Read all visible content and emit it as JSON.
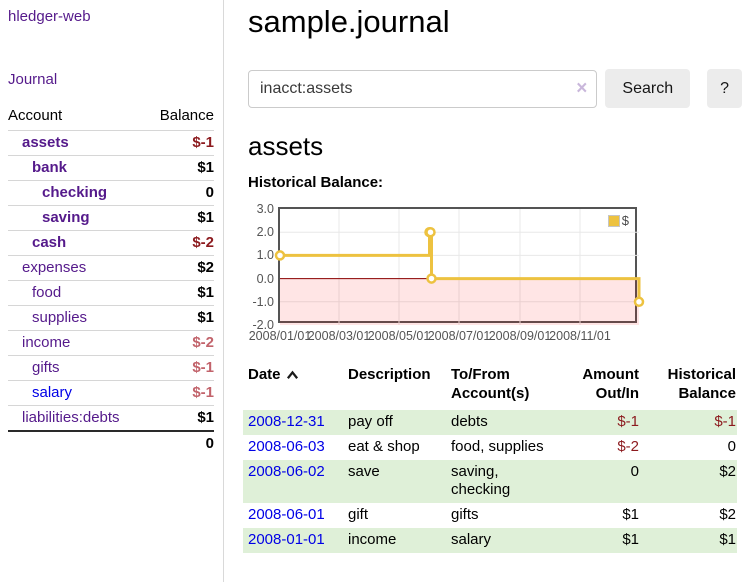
{
  "sidebar": {
    "app_title": "hledger-web",
    "journal_label": "Journal",
    "accounts_table": {
      "headers": {
        "account": "Account",
        "balance": "Balance"
      },
      "rows": [
        {
          "name": "assets",
          "balance": "$-1",
          "depth": 1,
          "bold": true,
          "balance_style": "negative"
        },
        {
          "name": "bank",
          "balance": "$1",
          "depth": 2,
          "bold": true
        },
        {
          "name": "checking",
          "balance": "0",
          "depth": 3,
          "bold": true
        },
        {
          "name": "saving",
          "balance": "$1",
          "depth": 3,
          "bold": true
        },
        {
          "name": "cash",
          "balance": "$-2",
          "depth": 2,
          "bold": true,
          "balance_style": "negative"
        },
        {
          "name": "expenses",
          "balance": "$2",
          "depth": 1
        },
        {
          "name": "food",
          "balance": "$1",
          "depth": 2
        },
        {
          "name": "supplies",
          "balance": "$1",
          "depth": 2
        },
        {
          "name": "income",
          "balance": "$-2",
          "depth": 1,
          "balance_style": "negative-muted"
        },
        {
          "name": "gifts",
          "balance": "$-1",
          "depth": 2,
          "balance_style": "negative-muted"
        },
        {
          "name": "salary",
          "balance": "$-1",
          "depth": 2,
          "balance_style": "negative-muted",
          "link_style": "blue"
        },
        {
          "name": "liabilities:debts",
          "balance": "$1",
          "depth": 1
        }
      ],
      "total": "0"
    }
  },
  "main": {
    "title": "sample.journal",
    "search": {
      "value": "inacct:assets",
      "clear_icon": "×",
      "button_label": "Search",
      "help_label": "?"
    },
    "account_heading": "assets",
    "chart_heading": "Historical Balance:"
  },
  "chart_data": {
    "type": "line",
    "subtype": "step",
    "title": "Historical Balance",
    "series": [
      {
        "name": "$",
        "color": "#edc240",
        "points": [
          [
            "2008-01-01",
            1
          ],
          [
            "2008-06-01",
            2
          ],
          [
            "2008-06-02",
            2
          ],
          [
            "2008-06-03",
            0
          ],
          [
            "2008-12-31",
            -1
          ]
        ]
      }
    ],
    "x_range": [
      "2008-01-01",
      "2008-12-31"
    ],
    "x_ticks": [
      "2008/01/01",
      "2008/03/01",
      "2008/05/01",
      "2008/07/01",
      "2008/09/01",
      "2008/11/01"
    ],
    "y_ticks": [
      3.0,
      2.0,
      1.0,
      0.0,
      -1.0,
      -2.0
    ],
    "ylim": [
      -2,
      3
    ],
    "grid": true,
    "legend": {
      "label": "$",
      "position": "top-right"
    },
    "negative_region_color": "rgba(255,0,0,0.10)",
    "zero_line_color": "#8b0000",
    "border_color": "#545454",
    "gridline_color": "#e8e8e8"
  },
  "register": {
    "headers": [
      {
        "label": "Date",
        "sorted": "asc"
      },
      {
        "label": "Description"
      },
      {
        "label": "To/From Account(s)"
      },
      {
        "label": "Amount Out/In"
      },
      {
        "label": "Historical Balance"
      }
    ],
    "rows": [
      {
        "date": "2008-12-31",
        "description": "pay off",
        "accounts": "debts",
        "amount": "$-1",
        "amount_negative": true,
        "balance": "$-1",
        "balance_negative": true
      },
      {
        "date": "2008-06-03",
        "description": "eat & shop",
        "accounts": "food, supplies",
        "amount": "$-2",
        "amount_negative": true,
        "balance": "0"
      },
      {
        "date": "2008-06-02",
        "description": "save",
        "accounts": "saving, checking",
        "amount": "0",
        "balance": "$2"
      },
      {
        "date": "2008-06-01",
        "description": "gift",
        "accounts": "gifts",
        "amount": "$1",
        "balance": "$2"
      },
      {
        "date": "2008-01-01",
        "description": "income",
        "accounts": "salary",
        "amount": "$1",
        "balance": "$1"
      }
    ]
  },
  "colors": {
    "link_purple": "#551a8b",
    "link_blue": "#0000e6",
    "negative": "#8c1a1e",
    "negative_muted": "#c2636b",
    "row_stripe_green": "#dff0d8",
    "series_gold": "#edc240",
    "sidebar_divider": "#d9d9d9"
  }
}
